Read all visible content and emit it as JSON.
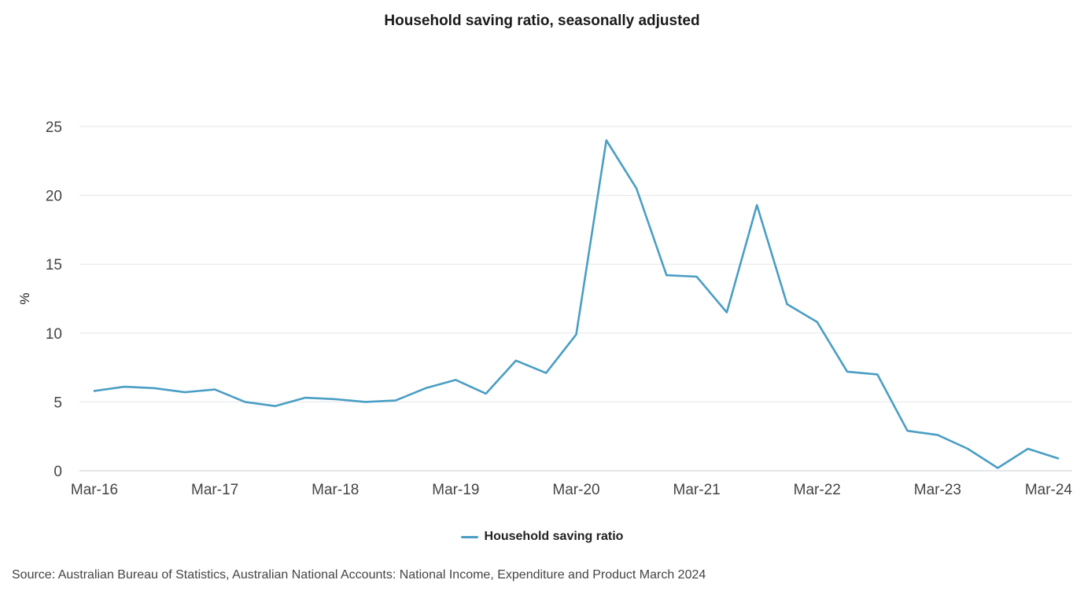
{
  "colors": {
    "series": "#4a9ec4",
    "grid": "#e3e6ea",
    "axis_text": "#444444"
  },
  "chart_data": {
    "type": "line",
    "title": "Household saving ratio, seasonally adjusted",
    "ylabel": "%",
    "xlabel": "",
    "ylim": [
      0,
      25
    ],
    "yticks": [
      0,
      5,
      10,
      15,
      20,
      25
    ],
    "x": [
      "Mar-16",
      "Jun-16",
      "Sep-16",
      "Dec-16",
      "Mar-17",
      "Jun-17",
      "Sep-17",
      "Dec-17",
      "Mar-18",
      "Jun-18",
      "Sep-18",
      "Dec-18",
      "Mar-19",
      "Jun-19",
      "Sep-19",
      "Dec-19",
      "Mar-20",
      "Jun-20",
      "Sep-20",
      "Dec-20",
      "Mar-21",
      "Jun-21",
      "Sep-21",
      "Dec-21",
      "Mar-22",
      "Jun-22",
      "Sep-22",
      "Dec-22",
      "Mar-23",
      "Jun-23",
      "Sep-23",
      "Dec-23",
      "Mar-24"
    ],
    "x_tick_labels": [
      "Mar-16",
      "Mar-17",
      "Mar-18",
      "Mar-19",
      "Mar-20",
      "Mar-21",
      "Mar-22",
      "Mar-23",
      "Mar-24"
    ],
    "series": [
      {
        "name": "Household saving ratio",
        "values": [
          5.8,
          6.1,
          6.0,
          5.7,
          5.9,
          5.0,
          4.7,
          5.3,
          5.2,
          5.0,
          5.1,
          6.0,
          6.6,
          5.6,
          8.0,
          7.1,
          9.9,
          24.0,
          20.5,
          14.2,
          14.1,
          11.5,
          19.3,
          12.1,
          10.8,
          7.2,
          7.0,
          2.9,
          2.6,
          1.6,
          0.2,
          1.6,
          0.9
        ]
      }
    ],
    "legend": "bottom-center",
    "grid": true
  },
  "legend_label": "Household saving ratio",
  "source": "Source: Australian Bureau of Statistics, Australian National Accounts: National Income, Expenditure and Product March 2024"
}
